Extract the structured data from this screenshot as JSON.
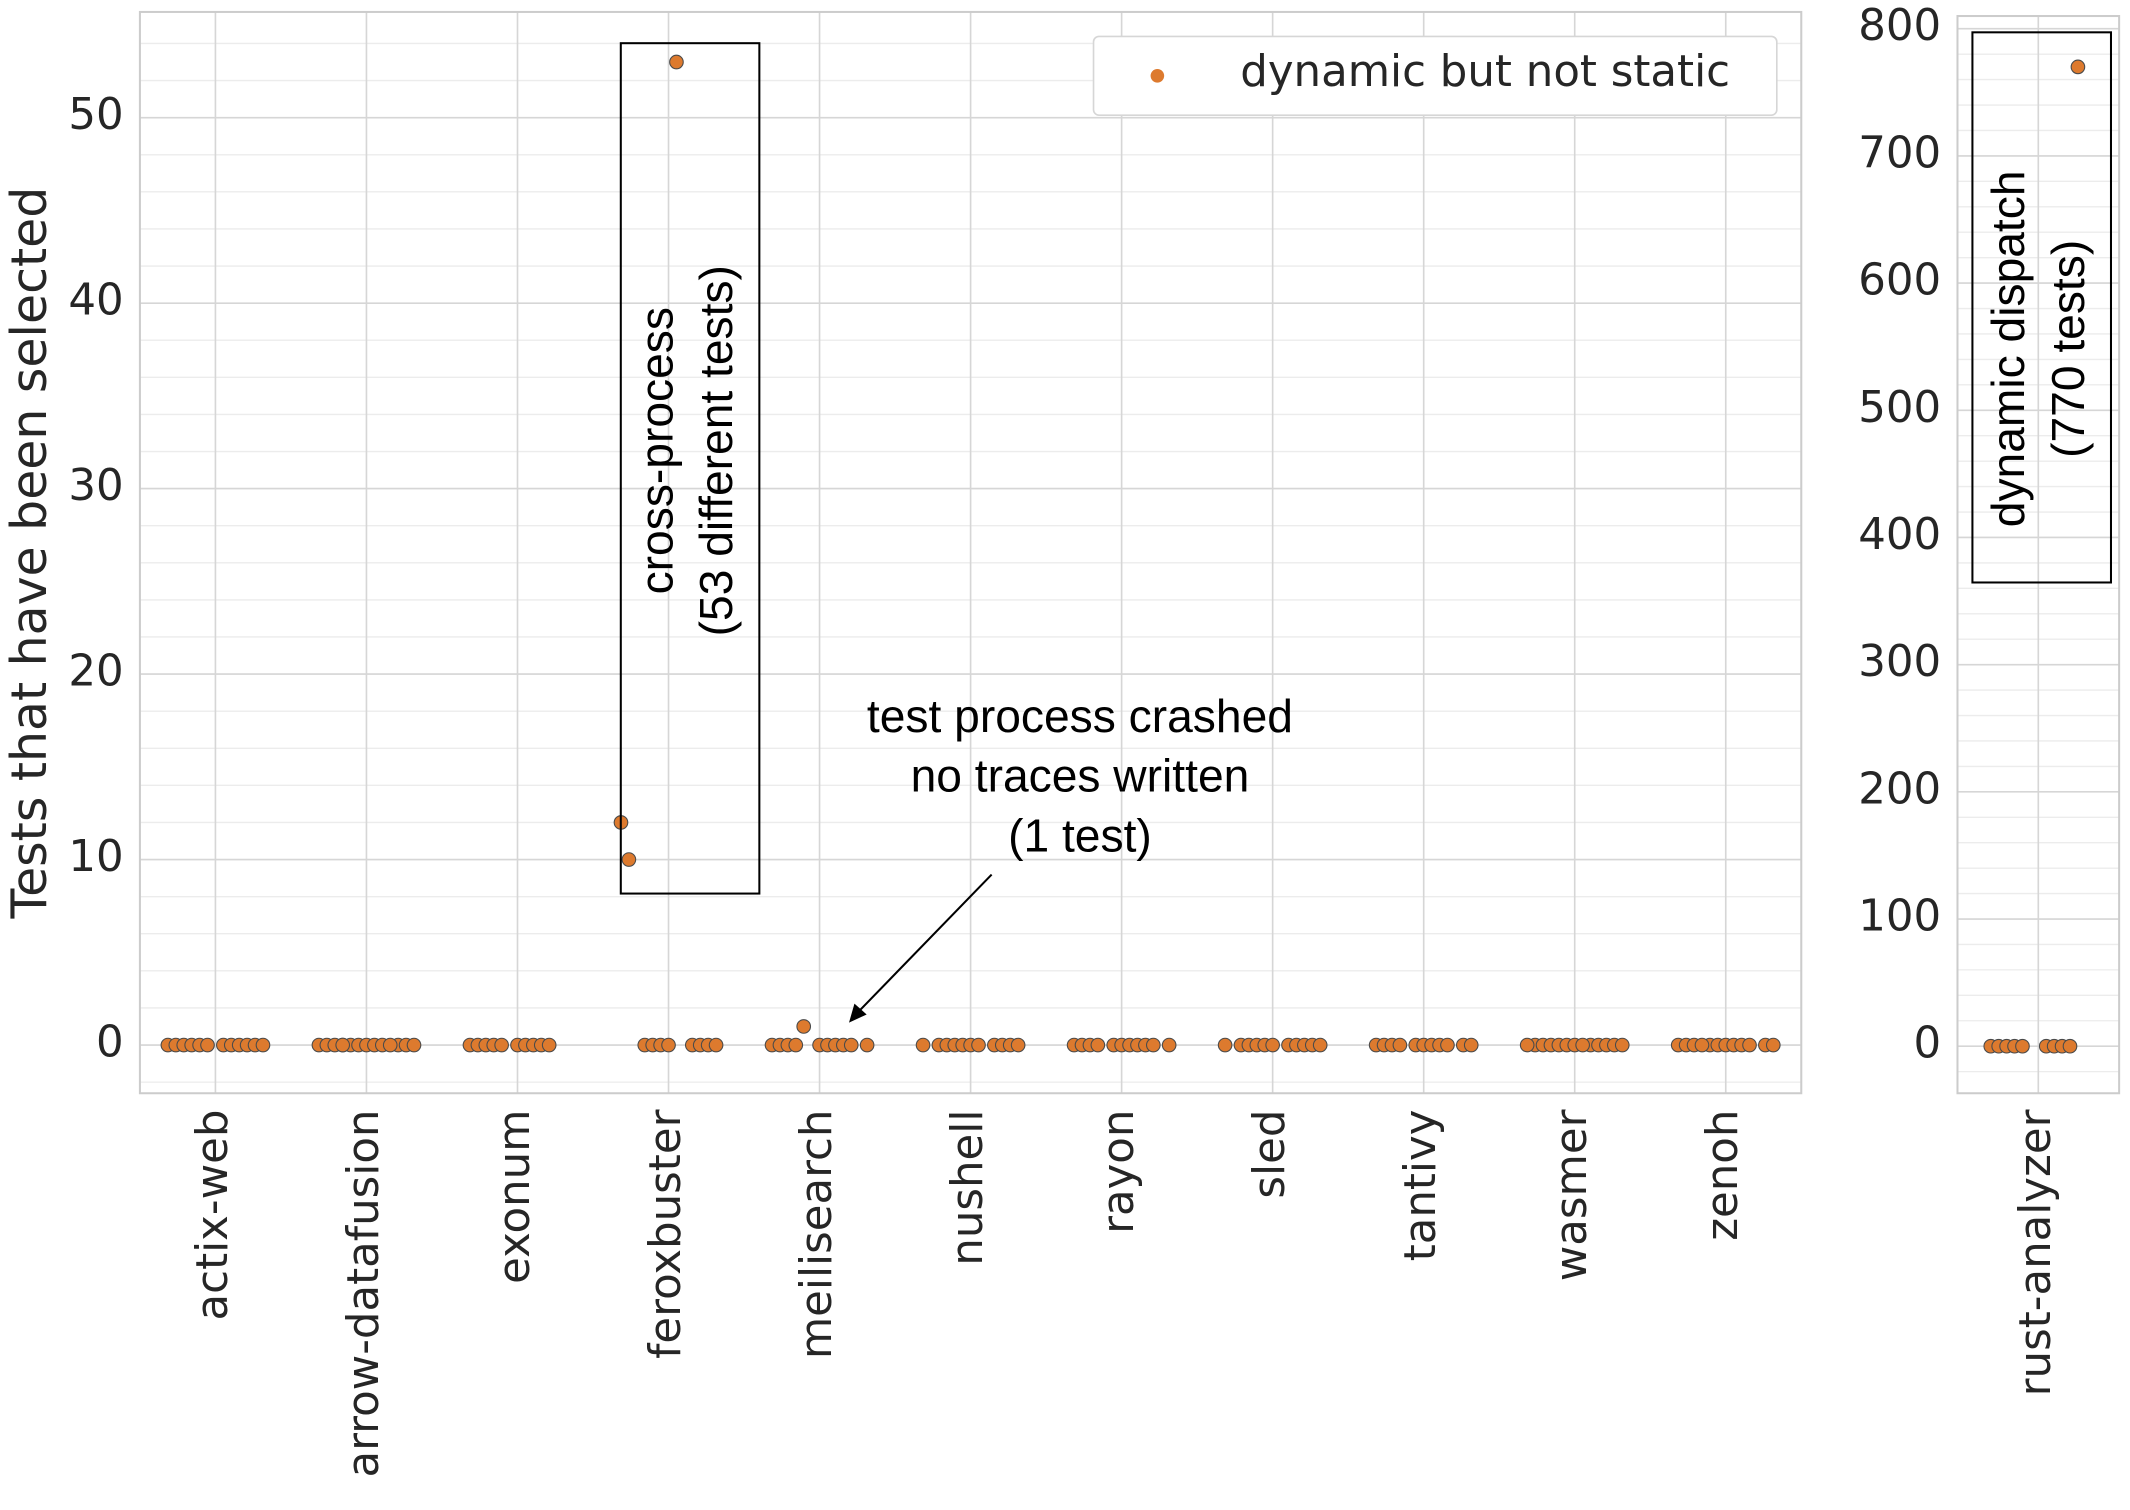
{
  "chart_data": [
    {
      "type": "strip",
      "ylabel": "Tests that have been selected",
      "categories": [
        "actix-web",
        "arrow-datafusion",
        "exonum",
        "feroxbuster",
        "meilisearch",
        "nushell",
        "rayon",
        "sled",
        "tantivy",
        "wasmer",
        "zenoh"
      ],
      "series": [
        {
          "name": "dynamic but not static",
          "color": "#dd7a2e",
          "values": [
            [
              0,
              0,
              0,
              0,
              0,
              0,
              0,
              0,
              0,
              0,
              0,
              0
            ],
            [
              0,
              0,
              0,
              0,
              0,
              0,
              0,
              0,
              0,
              0,
              0,
              0,
              0,
              0
            ],
            [
              0,
              0,
              0,
              0,
              0,
              0,
              0,
              0,
              0,
              0
            ],
            [
              0,
              0,
              0,
              0,
              0,
              0,
              0,
              0,
              12,
              53,
              10
            ],
            [
              0,
              0,
              0,
              0,
              0,
              0,
              0,
              0,
              0,
              0,
              1
            ],
            [
              0,
              0,
              0,
              0,
              0,
              0,
              0,
              0,
              0,
              0,
              0
            ],
            [
              0,
              0,
              0,
              0,
              0,
              0,
              0,
              0,
              0,
              0,
              0
            ],
            [
              0,
              0,
              0,
              0,
              0,
              0,
              0,
              0,
              0,
              0,
              0
            ],
            [
              0,
              0,
              0,
              0,
              0,
              0,
              0,
              0,
              0,
              0,
              0
            ],
            [
              0,
              0,
              0,
              0,
              0,
              0,
              0,
              0,
              0,
              0,
              0,
              0,
              0
            ],
            [
              0,
              0,
              0,
              0,
              0,
              0,
              0,
              0,
              0,
              0,
              0,
              0
            ]
          ]
        }
      ],
      "ylim": [
        -2.6,
        55.7
      ],
      "yticks": [
        0,
        10,
        20,
        30,
        40,
        50
      ],
      "grid": true,
      "legend": "upper right",
      "annotations": [
        {
          "lines": [
            "cross-process",
            "(53 different tests)"
          ]
        },
        {
          "lines": [
            "test process crashed",
            "no traces written",
            "(1 test)"
          ]
        }
      ]
    },
    {
      "type": "strip",
      "categories": [
        "rust-analyzer"
      ],
      "series": [
        {
          "color": "#dd7a2e",
          "values": [
            [
              0,
              0,
              0,
              0,
              0,
              0,
              0,
              0,
              0,
              770
            ]
          ]
        }
      ],
      "ylim": [
        -37,
        810
      ],
      "yticks": [
        0,
        100,
        200,
        300,
        400,
        500,
        600,
        700,
        800
      ],
      "grid": true,
      "annotations": [
        {
          "lines": [
            "dynamic dispatch",
            "(770 tests)"
          ]
        }
      ]
    }
  ]
}
